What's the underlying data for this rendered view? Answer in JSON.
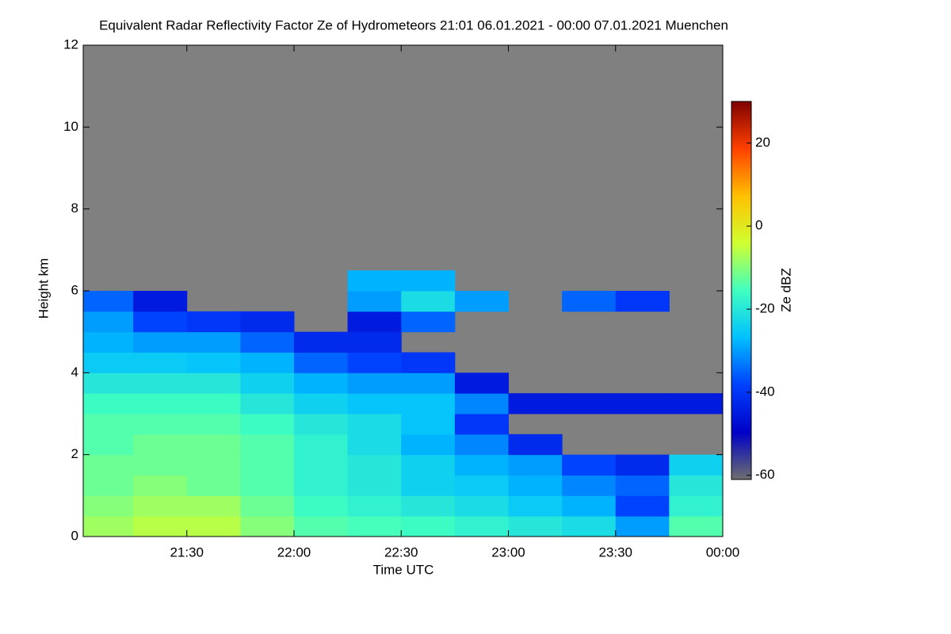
{
  "chart_data": {
    "type": "heatmap",
    "title": "Equivalent Radar Reflectivity Factor Ze of Hydrometeors   21:01 06.01.2021 - 00:00 07.01.2021 Muenchen",
    "x_label": "Time UTC",
    "y_label": "Height km",
    "colorbar_label": "Ze dBZ",
    "xlim": [
      21.0167,
      24
    ],
    "xticks": [
      {
        "value": 21.5,
        "label": "21:30"
      },
      {
        "value": 22,
        "label": "22:00"
      },
      {
        "value": 22.5,
        "label": "22:30"
      },
      {
        "value": 23,
        "label": "23:00"
      },
      {
        "value": 23.5,
        "label": "23:30"
      },
      {
        "value": 24,
        "label": "00:00"
      }
    ],
    "ylim": [
      0,
      12
    ],
    "yticks": [
      0,
      2,
      4,
      6,
      8,
      10,
      12
    ],
    "clim": [
      -61,
      30
    ],
    "cticks": [
      -60,
      -40,
      -20,
      0,
      20
    ],
    "colormap": [
      "#6e6e6e",
      "#0000c8",
      "#0040ff",
      "#00c0ff",
      "#40ffc0",
      "#d0ff30",
      "#ffc000",
      "#ff4000",
      "#800000"
    ],
    "nodata_color": "#808080",
    "x_bins": [
      21.0167,
      21.25,
      21.5,
      21.75,
      22,
      22.25,
      22.5,
      22.75,
      23,
      23.25,
      23.5,
      23.75,
      24
    ],
    "y_bins": [
      0,
      0.5,
      1,
      1.5,
      2,
      2.5,
      3,
      3.5,
      4,
      4.5,
      5,
      5.5,
      6,
      6.5,
      7
    ],
    "values": [
      [
        -8,
        -10,
        -12,
        -12,
        -14,
        -14,
        -16,
        -20,
        -25,
        -28,
        -30,
        -35,
        null,
        null
      ],
      [
        -6,
        -8,
        -10,
        -12,
        -12,
        -14,
        -16,
        -20,
        -25,
        -30,
        -38,
        -45,
        null,
        null
      ],
      [
        -6,
        -8,
        -12,
        -12,
        -12,
        -14,
        -16,
        -20,
        -26,
        -30,
        -40,
        null,
        null,
        null
      ],
      [
        -10,
        -12,
        -14,
        -14,
        -14,
        -16,
        -20,
        -24,
        -28,
        -35,
        -42,
        null,
        null,
        null
      ],
      [
        -14,
        -16,
        -18,
        -18,
        -18,
        -20,
        -24,
        -28,
        -35,
        -42,
        null,
        null,
        null,
        null
      ],
      [
        -15,
        -18,
        -20,
        -20,
        -22,
        -22,
        -26,
        -30,
        -38,
        -42,
        -45,
        -30,
        -28,
        null
      ],
      [
        -16,
        -20,
        -24,
        -24,
        -28,
        -26,
        -26,
        -30,
        -40,
        null,
        -35,
        -22,
        -28,
        null
      ],
      [
        -18,
        -22,
        -25,
        -28,
        -32,
        -40,
        -32,
        -45,
        null,
        null,
        null,
        -30,
        null,
        null
      ],
      [
        -20,
        -25,
        -28,
        -30,
        -42,
        null,
        -45,
        null,
        null,
        null,
        null,
        null,
        null,
        null
      ],
      [
        -22,
        -28,
        -32,
        -38,
        null,
        null,
        -45,
        null,
        null,
        null,
        null,
        -35,
        null,
        null
      ],
      [
        -30,
        -38,
        -35,
        -42,
        null,
        null,
        -45,
        null,
        null,
        null,
        null,
        -40,
        null,
        null
      ],
      [
        -14,
        -18,
        -20,
        -24,
        null,
        null,
        -45,
        null,
        null,
        null,
        null,
        null,
        null,
        null
      ]
    ]
  }
}
